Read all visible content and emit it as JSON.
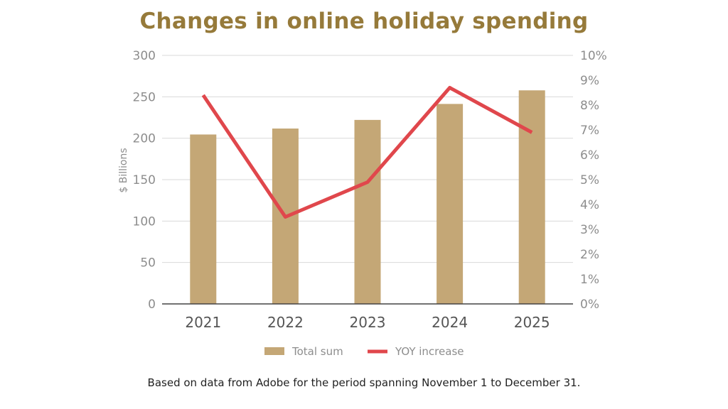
{
  "chart_data": {
    "type": "bar",
    "title": "Changes in online holiday spending",
    "footnote": "Based on data from Adobe for the period spanning November 1 to December 31.",
    "categories": [
      "2021",
      "2022",
      "2023",
      "2024",
      "2025"
    ],
    "ylabel": "$ Billions",
    "ylim": [
      0,
      300
    ],
    "yticks": [
      0,
      50,
      100,
      150,
      200,
      250,
      300
    ],
    "y2lim": [
      0,
      10
    ],
    "y2ticks": [
      "0%",
      "1%",
      "2%",
      "3%",
      "4%",
      "5%",
      "6%",
      "7%",
      "8%",
      "9%",
      "10%"
    ],
    "grid": true,
    "legend_position": "bottom",
    "series": [
      {
        "name": "Total sum",
        "type": "bar",
        "axis": "left",
        "color": "#c4a776",
        "values": [
          204.5,
          211.7,
          222.1,
          241.4,
          257.8
        ]
      },
      {
        "name": "YOY increase",
        "type": "line",
        "axis": "right",
        "color": "#e0474c",
        "values": [
          8.4,
          3.5,
          4.9,
          8.7,
          6.9
        ]
      }
    ]
  }
}
